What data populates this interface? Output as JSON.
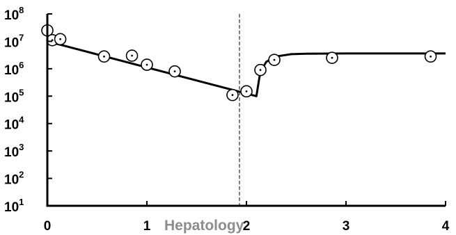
{
  "chart_data": {
    "type": "scatter",
    "title": "",
    "xlabel": "",
    "ylabel": "",
    "xlim": [
      0,
      4
    ],
    "ylim_log10": [
      1,
      8
    ],
    "y_scale": "log",
    "grid": false,
    "x_ticks": [
      "0",
      "1",
      "2",
      "3",
      "4"
    ],
    "y_tick_exponents": [
      "1",
      "2",
      "3",
      "4",
      "5",
      "6",
      "7",
      "8"
    ],
    "y_tick_base": "10",
    "reference_line_x": 1.93,
    "points": [
      {
        "x": 0.0,
        "y": 25000000
      },
      {
        "x": 0.05,
        "y": 11000000
      },
      {
        "x": 0.13,
        "y": 12000000
      },
      {
        "x": 0.57,
        "y": 2800000
      },
      {
        "x": 0.85,
        "y": 3000000
      },
      {
        "x": 1.0,
        "y": 1400000
      },
      {
        "x": 1.28,
        "y": 800000
      },
      {
        "x": 1.86,
        "y": 110000
      },
      {
        "x": 2.0,
        "y": 150000
      },
      {
        "x": 2.14,
        "y": 900000
      },
      {
        "x": 2.28,
        "y": 2100000
      },
      {
        "x": 2.86,
        "y": 2500000
      },
      {
        "x": 3.85,
        "y": 2800000
      }
    ],
    "fit_line": [
      {
        "x": 0.0,
        "y": 10000000
      },
      {
        "x": 2.1,
        "y": 100000
      },
      {
        "x": 2.1,
        "y": 100000
      },
      {
        "x": 2.14,
        "y": 800000
      },
      {
        "x": 2.2,
        "y": 1800000
      },
      {
        "x": 2.3,
        "y": 2800000
      },
      {
        "x": 2.45,
        "y": 3400000
      },
      {
        "x": 2.6,
        "y": 3550000
      },
      {
        "x": 3.0,
        "y": 3600000
      },
      {
        "x": 4.0,
        "y": 3600000
      }
    ],
    "watermark": "Hepatology"
  }
}
